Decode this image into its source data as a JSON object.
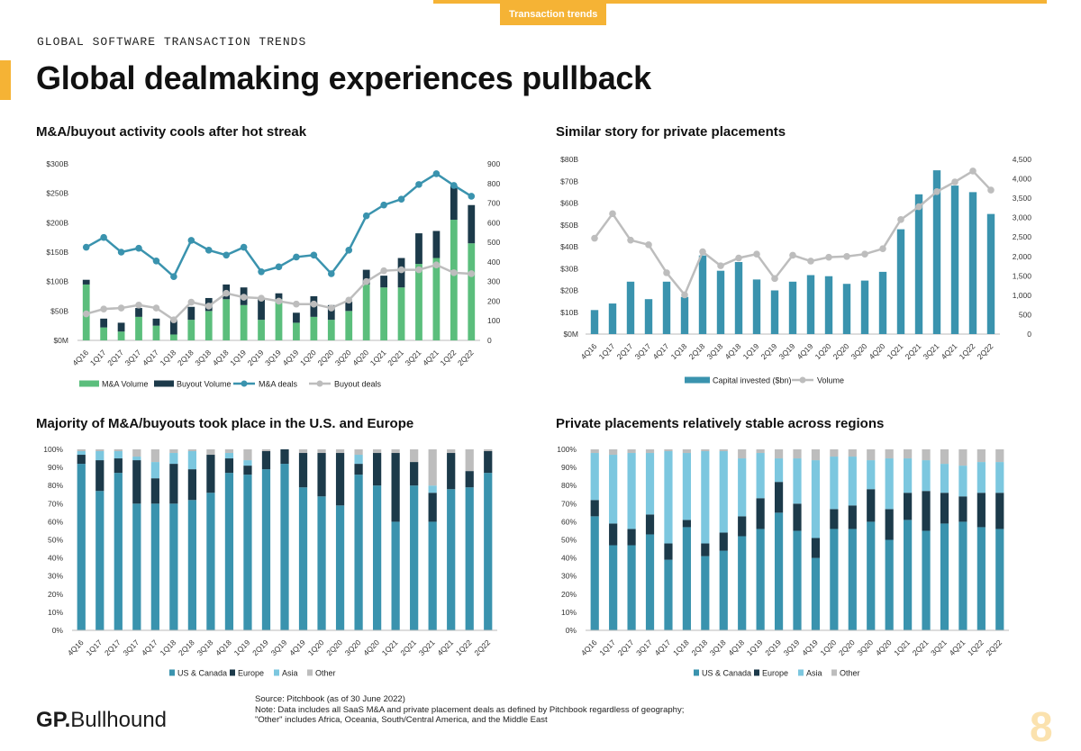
{
  "header": {
    "tag": "Transaction trends",
    "eyebrow": "GLOBAL SOFTWARE TRANSACTION TRENDS",
    "title": "Global dealmaking experiences pullback"
  },
  "footer": {
    "logo_prefix": "GP.",
    "logo_suffix": "Bullhound",
    "source": "Source: Pitchbook (as of 30 June 2022)",
    "note1": "Note: Data includes all SaaS M&A and private placement deals as defined by Pitchbook regardless of geography;",
    "note2": "\"Other\" includes Africa, Oceania, South/Central America, and the Middle East",
    "page_number": "8"
  },
  "colors": {
    "green": "#5BBE7C",
    "navy": "#1C3A4A",
    "teal": "#3A93AE",
    "tealLine": "#3A93AE",
    "grey": "#BDBDBD",
    "lightblue": "#7CC7DF",
    "accent": "#F5B335"
  },
  "chart_data": [
    {
      "id": "ma",
      "type": "bar-line-combo",
      "title": "M&A/buyout activity cools after hot streak",
      "categories": [
        "4Q16",
        "1Q17",
        "2Q17",
        "3Q17",
        "4Q17",
        "1Q18",
        "2Q18",
        "3Q18",
        "4Q18",
        "1Q19",
        "2Q19",
        "3Q19",
        "4Q19",
        "1Q20",
        "2Q20",
        "3Q20",
        "4Q20",
        "1Q21",
        "2Q21",
        "3Q21",
        "4Q21",
        "1Q22",
        "2Q22"
      ],
      "ylim_left": [
        0,
        300
      ],
      "yticks_left": [
        "$0M",
        "$50B",
        "$100B",
        "$150B",
        "$200B",
        "$250B",
        "$300B"
      ],
      "ylim_right": [
        0,
        900
      ],
      "yticks_right": [
        "0",
        "100",
        "200",
        "300",
        "400",
        "500",
        "600",
        "700",
        "800",
        "900"
      ],
      "series": [
        {
          "name": "M&A Volume",
          "kind": "bar-stack",
          "values": [
            95,
            22,
            15,
            40,
            25,
            10,
            35,
            50,
            70,
            60,
            35,
            70,
            30,
            40,
            35,
            50,
            95,
            90,
            90,
            130,
            140,
            205,
            165
          ]
        },
        {
          "name": "Buyout Volume",
          "kind": "bar-stack",
          "values": [
            8,
            15,
            15,
            15,
            12,
            25,
            22,
            22,
            25,
            30,
            35,
            10,
            17,
            35,
            25,
            16,
            25,
            20,
            50,
            52,
            46,
            58,
            65
          ]
        },
        {
          "name": "M&A deals",
          "kind": "line-right",
          "values": [
            475,
            525,
            450,
            470,
            405,
            325,
            510,
            460,
            435,
            475,
            350,
            375,
            425,
            435,
            340,
            460,
            635,
            690,
            720,
            795,
            850,
            790,
            735
          ]
        },
        {
          "name": "Buyout deals",
          "kind": "line-right",
          "values": [
            135,
            160,
            165,
            180,
            165,
            105,
            195,
            175,
            240,
            220,
            215,
            200,
            185,
            185,
            165,
            205,
            300,
            355,
            360,
            360,
            385,
            345,
            340
          ]
        }
      ]
    },
    {
      "id": "pp",
      "type": "bar-line-combo",
      "title": "Similar story for private placements",
      "categories": [
        "4Q16",
        "1Q17",
        "2Q17",
        "3Q17",
        "4Q17",
        "1Q18",
        "2Q18",
        "3Q18",
        "4Q18",
        "1Q19",
        "2Q19",
        "3Q19",
        "4Q19",
        "1Q20",
        "2Q20",
        "3Q20",
        "4Q20",
        "1Q21",
        "2Q21",
        "3Q21",
        "4Q21",
        "1Q22",
        "2Q22"
      ],
      "ylim_left": [
        0,
        80
      ],
      "yticks_left": [
        "$0M",
        "$10B",
        "$20B",
        "$30B",
        "$40B",
        "$50B",
        "$60B",
        "$70B",
        "$80B"
      ],
      "ylim_right": [
        0,
        4500
      ],
      "yticks_right": [
        "0",
        "500",
        "1,000",
        "1,500",
        "2,000",
        "2,500",
        "3,000",
        "3,500",
        "4,000",
        "4,500"
      ],
      "series": [
        {
          "name": "Capital invested ($bn)",
          "kind": "bar",
          "values": [
            11,
            14,
            24,
            16,
            24,
            17,
            36,
            29,
            33,
            25,
            20,
            24,
            27,
            26.5,
            23,
            24.5,
            28.5,
            48,
            64,
            75,
            68,
            65,
            55
          ]
        },
        {
          "name": "Volume",
          "kind": "line-right",
          "values": [
            2470,
            3100,
            2420,
            2300,
            1580,
            1010,
            2120,
            1760,
            1960,
            2060,
            1430,
            2030,
            1880,
            1980,
            2000,
            2060,
            2200,
            2950,
            3280,
            3670,
            3920,
            4200,
            3710
          ]
        }
      ]
    },
    {
      "id": "mareg",
      "type": "stacked-bar-percent",
      "title": "Majority of M&A/buyouts took place in the U.S. and Europe",
      "categories": [
        "4Q16",
        "1Q17",
        "2Q17",
        "3Q17",
        "4Q17",
        "1Q18",
        "2Q18",
        "3Q18",
        "4Q18",
        "1Q19",
        "2Q19",
        "3Q19",
        "4Q19",
        "1Q20",
        "2Q20",
        "3Q20",
        "4Q20",
        "1Q21",
        "2Q21",
        "3Q21",
        "4Q21",
        "1Q22",
        "2Q22"
      ],
      "yticks": [
        "0%",
        "10%",
        "20%",
        "30%",
        "40%",
        "50%",
        "60%",
        "70%",
        "80%",
        "90%",
        "100%"
      ],
      "series": [
        {
          "name": "US & Canada",
          "values": [
            92,
            77,
            87,
            70,
            70,
            70,
            72,
            76,
            87,
            86,
            89,
            92,
            79,
            74,
            69,
            86,
            80,
            60,
            80,
            60,
            78,
            79,
            87
          ]
        },
        {
          "name": "Europe",
          "values": [
            5,
            17,
            8,
            24,
            14,
            22,
            17,
            21,
            8,
            5,
            10,
            8,
            19,
            24,
            29,
            6,
            18,
            38,
            13,
            16,
            20,
            9,
            12
          ]
        },
        {
          "name": "Asia",
          "values": [
            2,
            5,
            4,
            2,
            9,
            6,
            10,
            0,
            3,
            3,
            0,
            0,
            0,
            0,
            0,
            5,
            0,
            0,
            0,
            4,
            0,
            0,
            0
          ]
        },
        {
          "name": "Other",
          "values": [
            1,
            1,
            1,
            4,
            7,
            2,
            1,
            3,
            2,
            6,
            1,
            0,
            2,
            2,
            2,
            3,
            2,
            2,
            7,
            20,
            2,
            12,
            1
          ]
        }
      ]
    },
    {
      "id": "ppreg",
      "type": "stacked-bar-percent",
      "title": "Private placements relatively stable across regions",
      "categories": [
        "4Q16",
        "1Q17",
        "2Q17",
        "3Q17",
        "4Q17",
        "1Q18",
        "2Q18",
        "3Q18",
        "4Q18",
        "1Q19",
        "2Q19",
        "3Q19",
        "4Q19",
        "1Q20",
        "2Q20",
        "3Q20",
        "4Q20",
        "1Q21",
        "2Q21",
        "3Q21",
        "4Q21",
        "1Q22",
        "2Q22"
      ],
      "yticks": [
        "0%",
        "10%",
        "20%",
        "30%",
        "40%",
        "50%",
        "60%",
        "70%",
        "80%",
        "90%",
        "100%"
      ],
      "series": [
        {
          "name": "US & Canada",
          "values": [
            63,
            47,
            47,
            53,
            39,
            57,
            41,
            44,
            52,
            56,
            65,
            55,
            40,
            56,
            56,
            60,
            50,
            61,
            55,
            59,
            60,
            57,
            56
          ]
        },
        {
          "name": "Europe",
          "values": [
            9,
            12,
            9,
            11,
            9,
            4,
            7,
            10,
            11,
            17,
            17,
            15,
            11,
            11,
            13,
            18,
            17,
            15,
            22,
            17,
            14,
            19,
            20
          ]
        },
        {
          "name": "Asia",
          "values": [
            26,
            38,
            42,
            34,
            51,
            37,
            51,
            45,
            32,
            25,
            13,
            25,
            43,
            29,
            27,
            16,
            28,
            19,
            17,
            16,
            17,
            17,
            17
          ]
        },
        {
          "name": "Other",
          "values": [
            2,
            3,
            2,
            2,
            1,
            2,
            1,
            1,
            5,
            2,
            5,
            5,
            6,
            4,
            4,
            6,
            5,
            5,
            6,
            8,
            9,
            7,
            7
          ]
        }
      ]
    }
  ]
}
